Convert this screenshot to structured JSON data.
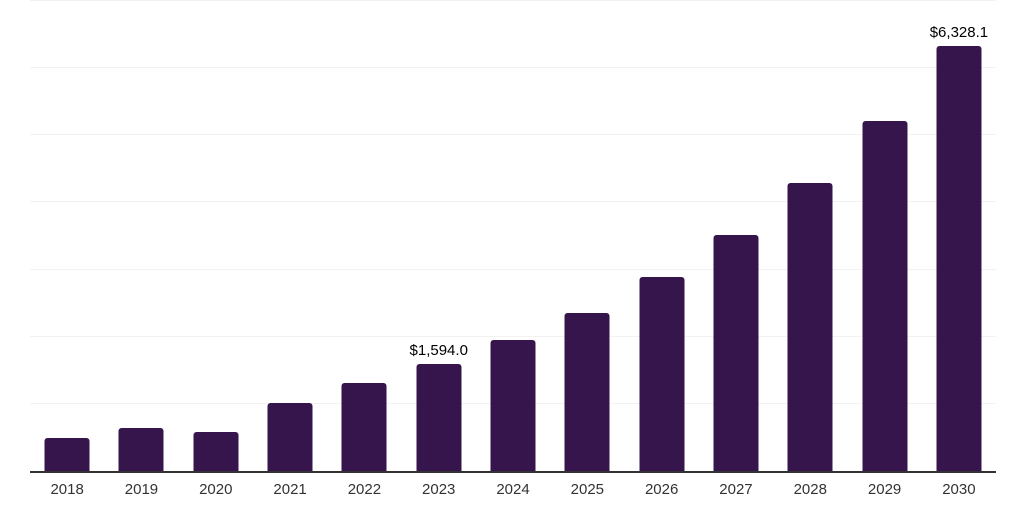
{
  "chart_data": {
    "type": "bar",
    "title": "",
    "xlabel": "",
    "ylabel": "",
    "categories": [
      "2018",
      "2019",
      "2020",
      "2021",
      "2022",
      "2023",
      "2024",
      "2025",
      "2026",
      "2027",
      "2028",
      "2029",
      "2030"
    ],
    "values": [
      493,
      637,
      578,
      1010,
      1310,
      1594.0,
      1951,
      2354,
      2891,
      3518,
      4294,
      5219,
      6328.1
    ],
    "data_labels": [
      "",
      "",
      "",
      "",
      "",
      "$1,594.0",
      "",
      "",
      "",
      "",
      "",
      "",
      "$6,328.1"
    ],
    "ylim": [
      0,
      7000
    ],
    "gridline_interval": 1000,
    "grid": true,
    "legend": false,
    "colors": {
      "bar": "#36154d",
      "gridline": "#f2f2f2",
      "axis": "#333333",
      "tick_label": "#333333",
      "data_label": "#000000"
    }
  }
}
